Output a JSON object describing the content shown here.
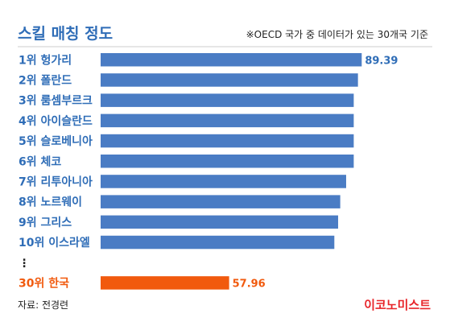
{
  "colors": {
    "title": "#2f6db7",
    "label": "#2f6db7",
    "bar": "#4a7cc4",
    "highlight": "#f15a0e",
    "text": "#222222",
    "brand": "#e8262b",
    "divider": "#cccccc"
  },
  "chart_data": {
    "type": "bar",
    "orientation": "horizontal",
    "title": "스킬 매칭 정도",
    "note": "※OECD 국가 중 데이터가 있는 30개국 기준",
    "categories": [
      "1위  헝가리",
      "2위  폴란드",
      "3위  룸셈부르크",
      "4위  아이슬란드",
      "5위  슬로베니아",
      "6위  체코",
      "7위  리투아니아",
      "8위  노르웨이",
      "9위  그리스",
      "10위 이스라엘",
      "⋮",
      "30위 한국"
    ],
    "values": [
      89.39,
      88.5,
      87.5,
      87.5,
      87.5,
      87.5,
      85.7,
      84.3,
      83.8,
      82.9,
      null,
      57.96
    ],
    "value_labels": [
      "89.39",
      "",
      "",
      "",
      "",
      "",
      "",
      "",
      "",
      "",
      "",
      "57.96"
    ],
    "highlight_index": 11,
    "xlim": [
      27.5,
      92
    ],
    "grid": false,
    "legend": "none"
  },
  "footer": {
    "source": "자료: 전경련",
    "brand": "이코노미스트"
  }
}
